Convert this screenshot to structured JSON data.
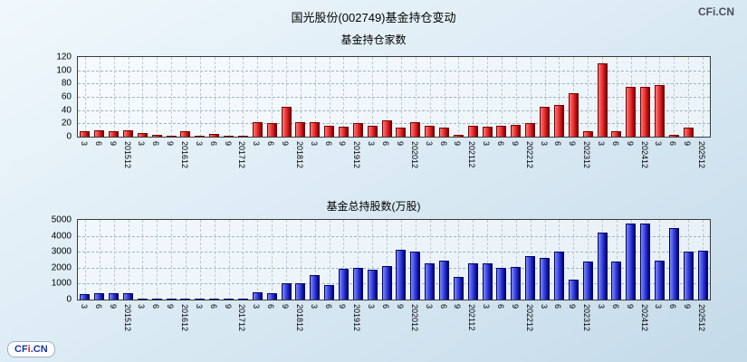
{
  "title": "国光股份(002749)基金持仓变动",
  "branding": {
    "watermark": "CFi.CN",
    "logo_parts": [
      {
        "text": "CF",
        "color": "#1535b0"
      },
      {
        "text": "i",
        "color": "#d42c1e"
      },
      {
        "text": ".CN",
        "color": "#1535b0"
      }
    ]
  },
  "chart_data": [
    {
      "type": "bar",
      "title": "基金持仓家数",
      "xlabel": "",
      "ylabel": "",
      "ylim": [
        0,
        120
      ],
      "yticks": [
        0,
        20,
        40,
        60,
        80,
        100,
        120
      ],
      "grid": true,
      "legend": "none",
      "bar_color": "#e52525",
      "bar_light": "#f87a7a",
      "bar_dark": "#7a0000",
      "categories": [
        "20153",
        "20156",
        "20159",
        "201512",
        "20163",
        "20166",
        "20169",
        "201612",
        "20173",
        "20176",
        "20179",
        "201712",
        "20183",
        "20186",
        "20189",
        "201812",
        "20193",
        "20196",
        "20199",
        "201912",
        "20203",
        "20206",
        "20209",
        "202012",
        "20213",
        "20216",
        "20219",
        "202112",
        "20223",
        "20226",
        "20229",
        "202212",
        "20233",
        "20236",
        "20239",
        "202312",
        "20243",
        "20246",
        "20249",
        "202412",
        "20253",
        "20256",
        "20259",
        "202512"
      ],
      "tick_labels": [
        "3",
        "6",
        "9",
        "201512",
        "3",
        "6",
        "9",
        "201612",
        "3",
        "6",
        "9",
        "201712",
        "3",
        "6",
        "9",
        "201812",
        "3",
        "6",
        "9",
        "201912",
        "3",
        "6",
        "9",
        "202012",
        "3",
        "6",
        "9",
        "202112",
        "3",
        "6",
        "9",
        "202212",
        "3",
        "6",
        "9",
        "202312",
        "3",
        "6",
        "9",
        "202412",
        "3",
        "6",
        "9",
        "202512"
      ],
      "values": [
        8,
        10,
        8,
        10,
        6,
        3,
        2,
        8,
        2,
        4,
        1,
        1,
        22,
        20,
        45,
        22,
        22,
        16,
        15,
        20,
        17,
        25,
        13,
        22,
        17,
        14,
        3,
        16,
        15,
        17,
        18,
        20,
        45,
        48,
        65,
        8,
        110,
        8,
        75,
        75,
        78,
        3,
        13,
        0
      ]
    },
    {
      "type": "bar",
      "title": "基金总持股数(万股)",
      "xlabel": "",
      "ylabel": "",
      "ylim": [
        0,
        5000
      ],
      "yticks": [
        0,
        1000,
        2000,
        3000,
        4000,
        5000
      ],
      "grid": true,
      "legend": "none",
      "bar_color": "#2b35d8",
      "bar_light": "#7f8af2",
      "bar_dark": "#000070",
      "categories": [
        "20153",
        "20156",
        "20159",
        "201512",
        "20163",
        "20166",
        "20169",
        "201612",
        "20173",
        "20176",
        "20179",
        "201712",
        "20183",
        "20186",
        "20189",
        "201812",
        "20193",
        "20196",
        "20199",
        "201912",
        "20203",
        "20206",
        "20209",
        "202012",
        "20213",
        "20216",
        "20219",
        "202112",
        "20223",
        "20226",
        "20229",
        "202212",
        "20233",
        "20236",
        "20239",
        "202312",
        "20243",
        "20246",
        "20249",
        "202412",
        "20253",
        "20256",
        "20259",
        "202512"
      ],
      "tick_labels": [
        "3",
        "6",
        "9",
        "201512",
        "3",
        "6",
        "9",
        "201612",
        "3",
        "6",
        "9",
        "201712",
        "3",
        "6",
        "9",
        "201812",
        "3",
        "6",
        "9",
        "201912",
        "3",
        "6",
        "9",
        "202012",
        "3",
        "6",
        "9",
        "202112",
        "3",
        "6",
        "9",
        "202212",
        "3",
        "6",
        "9",
        "202312",
        "3",
        "6",
        "9",
        "202412",
        "3",
        "6",
        "9",
        "202512"
      ],
      "values": [
        350,
        420,
        380,
        400,
        60,
        40,
        30,
        50,
        20,
        30,
        15,
        20,
        450,
        400,
        1050,
        1000,
        1550,
        900,
        1950,
        2000,
        1900,
        2100,
        3100,
        3000,
        2300,
        2450,
        1400,
        2300,
        2250,
        2000,
        2050,
        2700,
        2600,
        3000,
        1250,
        2400,
        4200,
        2400,
        4800,
        4750,
        2450,
        4500,
        3000,
        3050
      ]
    }
  ]
}
